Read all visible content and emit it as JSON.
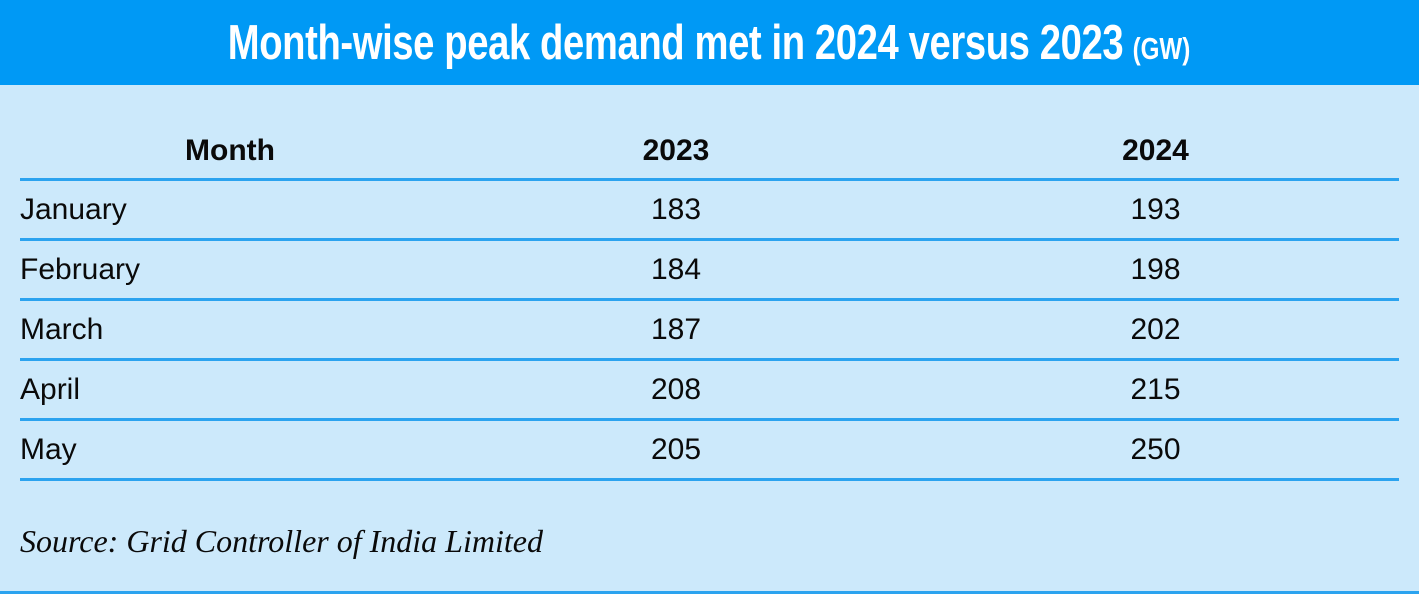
{
  "title": {
    "main": "Month-wise peak demand met in 2024 versus 2023",
    "unit": "(GW)"
  },
  "chart_data": {
    "type": "table",
    "title": "Month-wise peak demand met in 2024 versus 2023 (GW)",
    "columns": [
      "Month",
      "2023",
      "2024"
    ],
    "categories": [
      "January",
      "February",
      "March",
      "April",
      "May"
    ],
    "series": [
      {
        "name": "2023",
        "values": [
          183,
          184,
          187,
          208,
          205
        ]
      },
      {
        "name": "2024",
        "values": [
          193,
          198,
          202,
          215,
          250
        ]
      }
    ],
    "unit": "GW",
    "source": "Source: Grid Controller of India Limited"
  },
  "source_note": "Source: Grid Controller of India Limited",
  "colors": {
    "header_bar": "#0099f5",
    "background": "#cce9fb",
    "rule": "#2ba3ef",
    "title_text": "#ffffff",
    "body_text": "#0a0a0a"
  }
}
